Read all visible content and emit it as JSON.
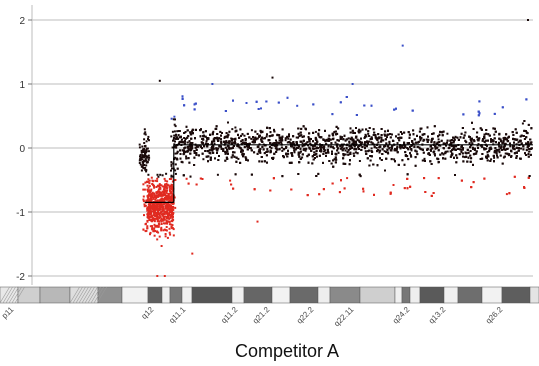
{
  "chart_data": {
    "type": "scatter",
    "title": "Competitor A",
    "xlabel": "",
    "ylabel": "",
    "ylim": [
      -2.2,
      2.2
    ],
    "xlim": [
      0,
      100
    ],
    "y_ticks": [
      2,
      1,
      0,
      -1,
      -2
    ],
    "grid": true,
    "legend": "none",
    "colors": {
      "normal": "#1a0a0a",
      "gain": "#3a4fc8",
      "loss": "#e02a20",
      "grid": "#bdbdbd",
      "segment_line": "#000000"
    },
    "cytobands": [
      "p11",
      "q12",
      "q11.1",
      "q11.2",
      "q21.2",
      "q22.2",
      "q22.11",
      "q24.2",
      "q13.2",
      "q26.2"
    ],
    "segments": [
      {
        "x0": 22.5,
        "x1": 28.3,
        "y": -0.85
      },
      {
        "x0": 28.3,
        "x1": 100,
        "y": 0.05
      }
    ],
    "series": [
      {
        "role": "normal",
        "note_region": "x 22-100, y within about -0.5 to 0.5"
      },
      {
        "role": "gain",
        "note_region": "points above +0.45"
      },
      {
        "role": "loss",
        "note_region": "points below -0.45, dense in x 24-28 near -1"
      }
    ],
    "outliers": [
      {
        "x": 74.0,
        "y": 1.6,
        "role": "gain"
      },
      {
        "x": 99.0,
        "y": 2.0,
        "role": "normal"
      },
      {
        "x": 25.5,
        "y": 1.05,
        "role": "normal"
      },
      {
        "x": 48.0,
        "y": 1.1,
        "role": "normal"
      },
      {
        "x": 36.0,
        "y": 1.0,
        "role": "gain"
      },
      {
        "x": 64.0,
        "y": 1.0,
        "role": "gain"
      },
      {
        "x": 32.0,
        "y": -1.65,
        "role": "loss"
      },
      {
        "x": 25.0,
        "y": -2.0,
        "role": "loss"
      },
      {
        "x": 26.5,
        "y": -2.0,
        "role": "loss"
      },
      {
        "x": 45.0,
        "y": -1.15,
        "role": "loss"
      }
    ]
  }
}
